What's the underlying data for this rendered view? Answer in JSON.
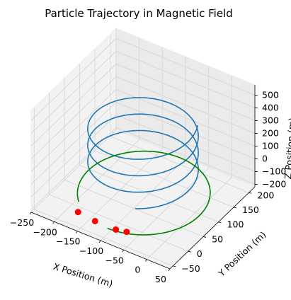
{
  "chart_data": {
    "type": "line",
    "projection": "3d",
    "title": "Particle Trajectory in Magnetic Field",
    "xlabel": "X Position (m)",
    "ylabel": "Y Position (m)",
    "zlabel": "Z Position (m)",
    "xticks": [
      "−250",
      "−200",
      "−150",
      "−100",
      "−50",
      "0",
      "50"
    ],
    "yticks": [
      "−50",
      "0",
      "50",
      "100",
      "150",
      "200"
    ],
    "zticks": [
      "−200",
      "−100",
      "0",
      "100",
      "200",
      "300",
      "400",
      "500"
    ],
    "xlim": [
      -250,
      50
    ],
    "ylim": [
      -60,
      220
    ],
    "zlim": [
      -220,
      580
    ],
    "grid": true,
    "colors": {
      "helix": "#1f77b4",
      "ground_orbit": "#008000",
      "markers": "#ff0000"
    },
    "helix": {
      "center": [
        -100,
        80
      ],
      "radius": 100,
      "z_start": -20,
      "z_end": 400,
      "turns": 3.25,
      "start_angle_deg": 295
    },
    "ground_orbit": {
      "center": [
        -95,
        75
      ],
      "radius": 120,
      "z": -150,
      "start_angle_deg": 270,
      "sweep_deg": 315
    },
    "marker_points": [
      {
        "x": -165,
        "y": -35,
        "z": -150
      },
      {
        "x": -125,
        "y": -40,
        "z": -150
      },
      {
        "x": -80,
        "y": -40,
        "z": -150
      },
      {
        "x": -60,
        "y": -35,
        "z": -150
      }
    ]
  }
}
